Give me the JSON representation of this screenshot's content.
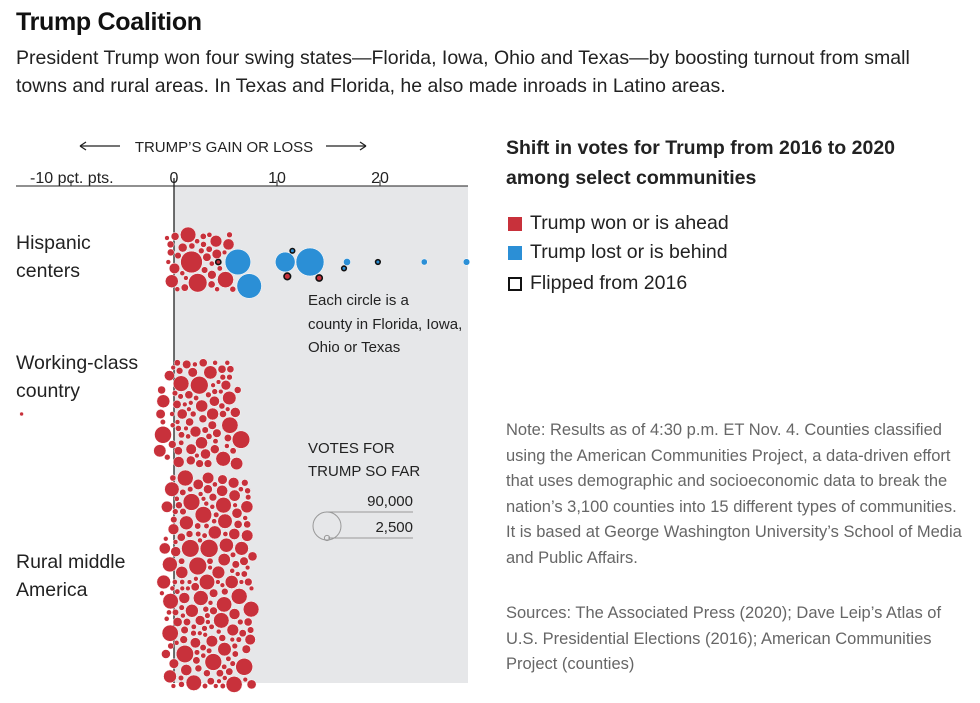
{
  "title": "Trump Coalition",
  "subtitle": "President Trump won four swing states—Florida, Iowa, Ohio and Texas—by boosting turnout from small towns and rural areas. In Texas and Florida, he also made inroads in Latino areas.",
  "colors": {
    "won": "#c8313b",
    "lost": "#2b8fd6",
    "flipped_outline": "#111111",
    "plot_bg": "#e6e7e9",
    "axis": "#222222"
  },
  "legend": {
    "title": "Shift in votes for Trump from 2016 to 2020 among select communities",
    "won": "Trump won or is ahead",
    "lost": "Trump lost or is behind",
    "flipped": "Flipped from 2016"
  },
  "note": "Note: Results as of 4:30 p.m. ET Nov. 4. Counties classified using the American Communities Project, a data-driven effort that uses demographic and socioeconomic data to break the nation’s 3,100 counties into 15 different types of communities. It is based at George Washington University’s School of Media and Public Affairs.",
  "sources": "Sources: The Associated Press (2020); Dave Leip’s Atlas of U.S. Presidential Elections (2016); American Communities Project (counties)",
  "chart_data": {
    "type": "scatter",
    "subtype": "beeswarm",
    "axis_header": "TRUMP’S GAIN OR LOSS",
    "x_ticks": [
      -10,
      0,
      10,
      20
    ],
    "x_tick_labels": [
      "-10 pct. pts.",
      "0",
      "10",
      "20"
    ],
    "xlim": [
      -15.5,
      28.5
    ],
    "shaded_from": 0,
    "annotation": "Each circle is a county in Florida, Iowa, Ohio or Texas",
    "size_legend": {
      "title": "VOTES FOR TRUMP SO FAR",
      "values": [
        90000,
        2500
      ],
      "labels": [
        "90,000",
        "2,500"
      ]
    },
    "categories": [
      {
        "label": "Hispanic centers",
        "big_counties": [
          {
            "x": 2.3,
            "votes": 40000,
            "status": "won",
            "flipped": false
          },
          {
            "x": 1.7,
            "votes": 55000,
            "status": "won",
            "flipped": false
          },
          {
            "x": 5.0,
            "votes": 30000,
            "status": "won",
            "flipped": false
          },
          {
            "x": 7.3,
            "votes": 70000,
            "status": "lost",
            "flipped": false
          },
          {
            "x": 6.2,
            "votes": 75000,
            "status": "lost",
            "flipped": false
          },
          {
            "x": 10.8,
            "votes": 45000,
            "status": "lost",
            "flipped": false
          },
          {
            "x": 13.2,
            "votes": 90000,
            "status": "lost",
            "flipped": false
          },
          {
            "x": 16.8,
            "votes": 6000,
            "status": "lost",
            "flipped": false
          },
          {
            "x": 24.3,
            "votes": 4500,
            "status": "lost",
            "flipped": false
          },
          {
            "x": 28.4,
            "votes": 5000,
            "status": "lost",
            "flipped": false
          },
          {
            "x": 4.3,
            "votes": 3000,
            "status": "won",
            "flipped": true
          },
          {
            "x": 11.0,
            "votes": 5000,
            "status": "won",
            "flipped": true
          },
          {
            "x": 14.1,
            "votes": 4500,
            "status": "won",
            "flipped": true
          },
          {
            "x": 11.5,
            "votes": 2500,
            "status": "lost",
            "flipped": true
          },
          {
            "x": 16.5,
            "votes": 2500,
            "status": "lost",
            "flipped": true
          },
          {
            "x": 19.8,
            "votes": 2500,
            "status": "lost",
            "flipped": true
          }
        ],
        "swarm_summary": {
          "county_count_est": 50,
          "x_min": -1.3,
          "x_max": 6.5,
          "status": "won"
        }
      },
      {
        "label": "Working-class country",
        "big_counties": [
          {
            "x": 0.8,
            "votes": 12000,
            "status": "won",
            "flipped": false
          },
          {
            "x": -1.3,
            "votes": 10000,
            "status": "won",
            "flipped": false
          },
          {
            "x": -14.8,
            "votes": 1800,
            "status": "won",
            "flipped": false
          }
        ],
        "swarm_summary": {
          "county_count_est": 95,
          "x_min": -1.6,
          "x_max": 7.0,
          "status": "won"
        }
      },
      {
        "label": "Rural middle America",
        "big_counties": [
          {
            "x": 3.2,
            "votes": 28000,
            "status": "won",
            "flipped": false
          },
          {
            "x": -1.0,
            "votes": 22000,
            "status": "won",
            "flipped": false
          },
          {
            "x": 2.6,
            "votes": 26000,
            "status": "won",
            "flipped": false
          },
          {
            "x": 5.6,
            "votes": 20000,
            "status": "won",
            "flipped": false
          }
        ],
        "swarm_summary": {
          "county_count_est": 260,
          "x_min": -1.6,
          "x_max": 8.2,
          "status": "won"
        }
      }
    ]
  }
}
